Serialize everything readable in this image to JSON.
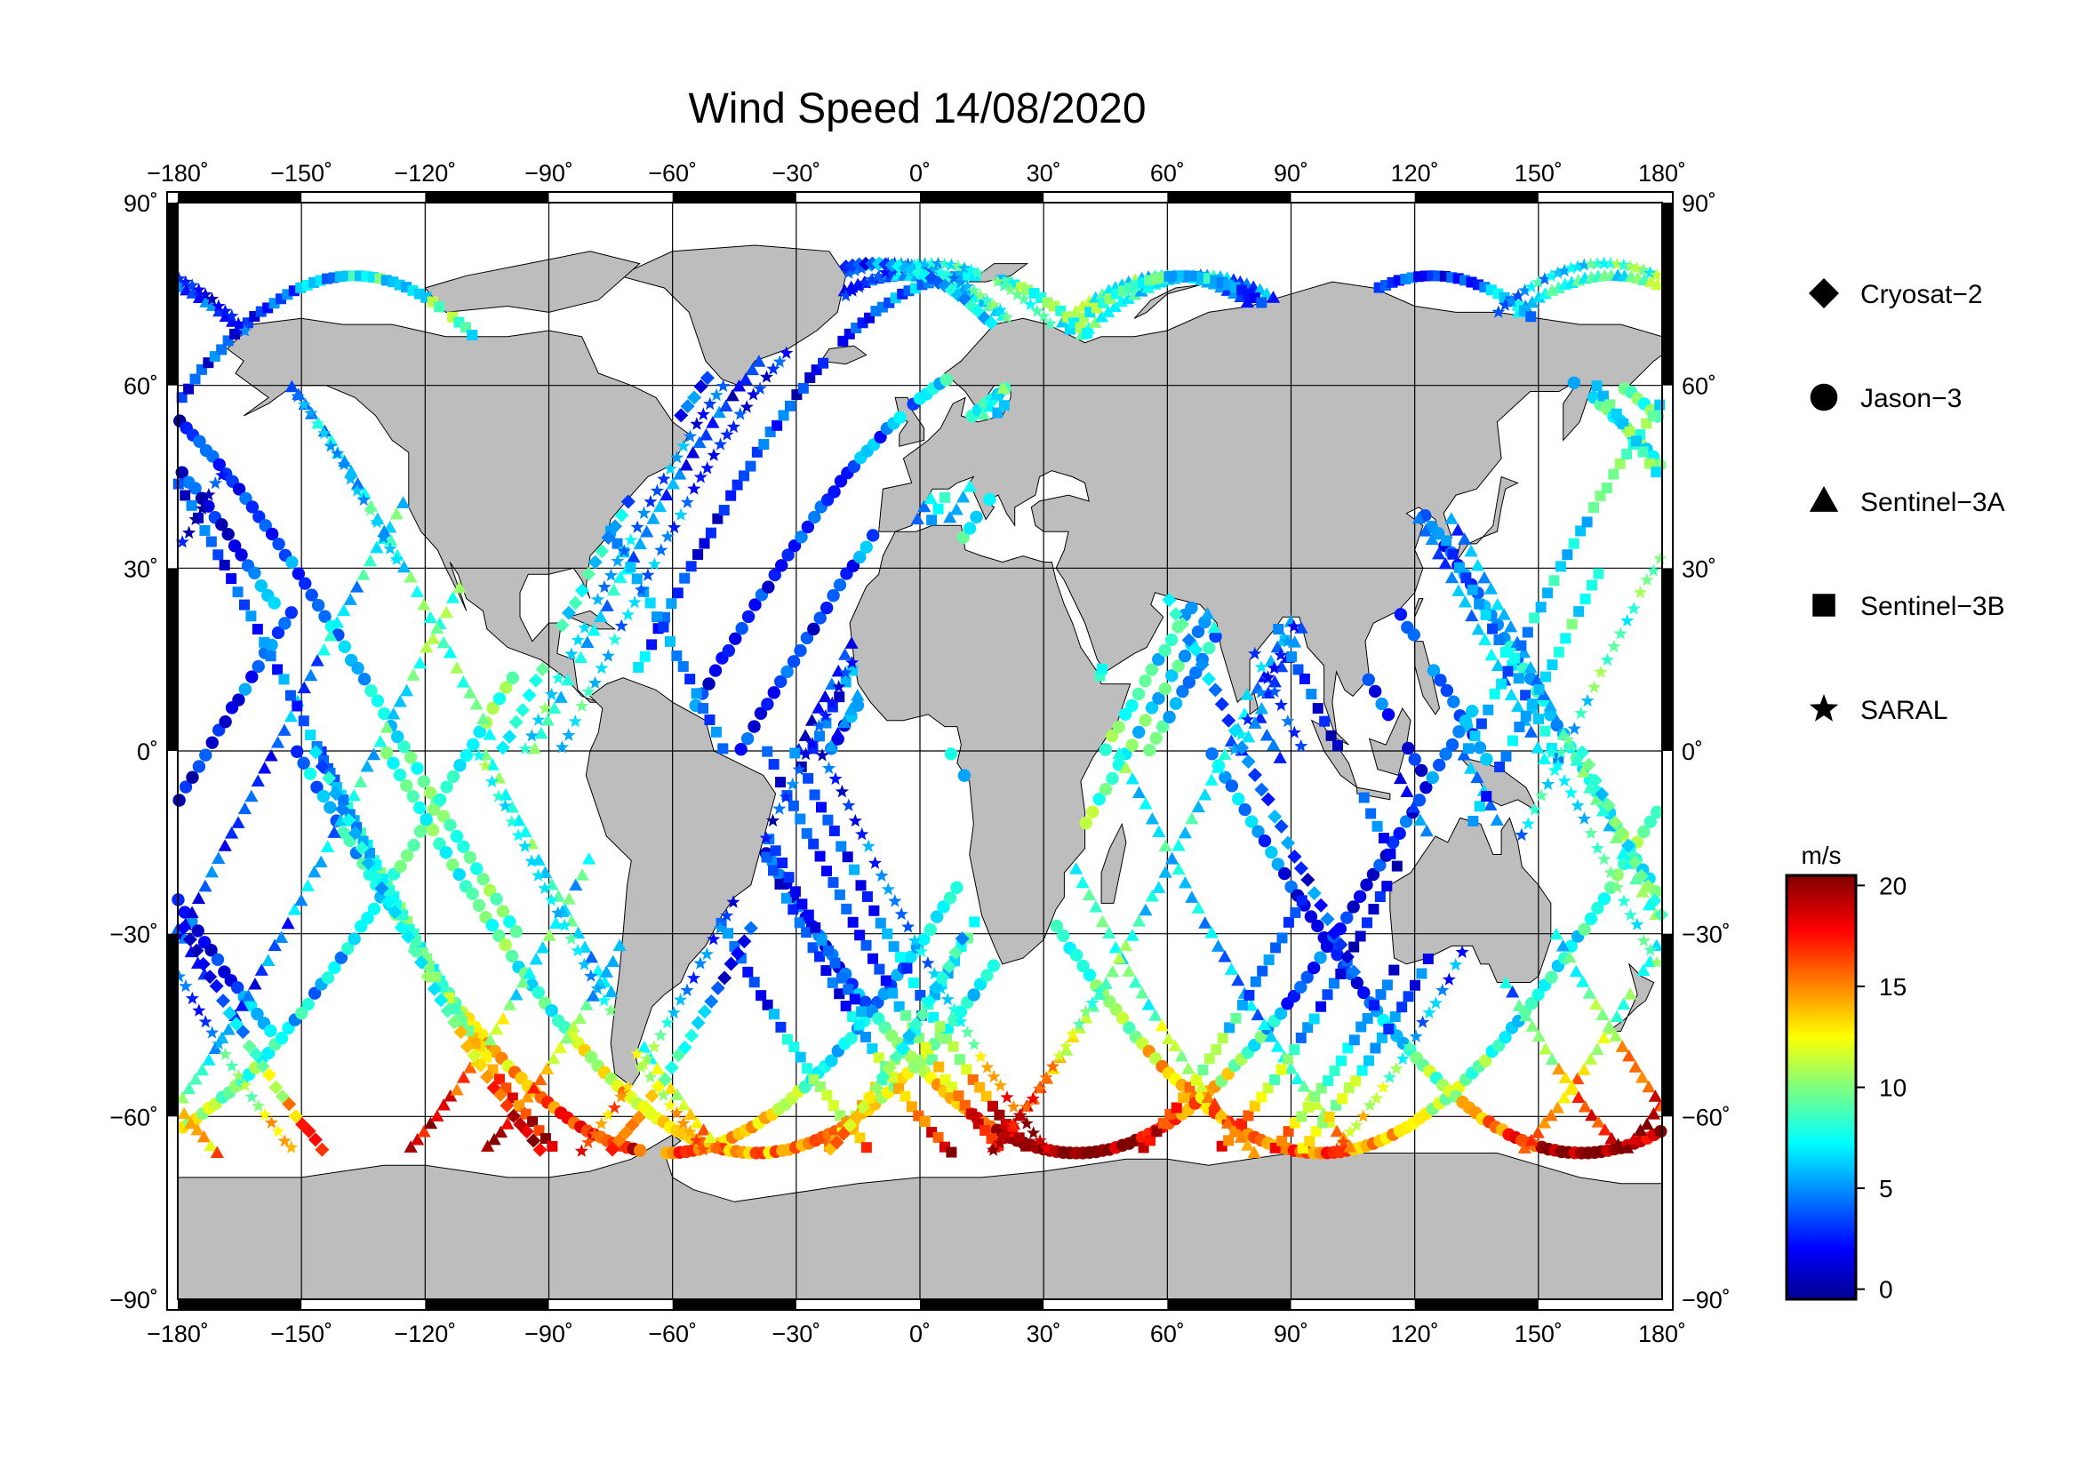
{
  "title": "Wind Speed 14/08/2020",
  "colors": {
    "land": "#bdbdbd",
    "ocean": "#ffffff",
    "frame": "#000000"
  },
  "chart_data": {
    "type": "scatter",
    "projection": "equirectangular",
    "xlim": [
      -180,
      180
    ],
    "ylim": [
      -90,
      90
    ],
    "x_ticks": [
      "−180˚",
      "−150˚",
      "−120˚",
      "−90˚",
      "−60˚",
      "−30˚",
      "0˚",
      "30˚",
      "60˚",
      "90˚",
      "120˚",
      "150˚",
      "180˚"
    ],
    "y_ticks": [
      "90˚",
      "60˚",
      "30˚",
      "0˚",
      "−30˚",
      "−60˚",
      "−90˚"
    ],
    "grid": true,
    "legend_position": "right",
    "series": [
      {
        "name": "Cryosat−2",
        "marker": "diamond"
      },
      {
        "name": "Jason−3",
        "marker": "circle"
      },
      {
        "name": "Sentinel−3A",
        "marker": "triangle"
      },
      {
        "name": "Sentinel−3B",
        "marker": "square"
      },
      {
        "name": "SARAL",
        "marker": "star"
      }
    ],
    "colorbar": {
      "label": "m/s",
      "range": [
        0,
        20
      ],
      "ticks": [
        "20",
        "15",
        "10",
        "5",
        "0"
      ],
      "colormap": "jet"
    }
  }
}
